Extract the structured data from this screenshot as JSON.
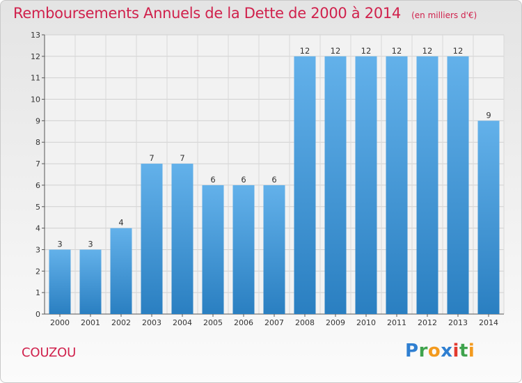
{
  "title": "Remboursements Annuels de la Dette de 2000 à 2014",
  "unit": "(en milliers d'€)",
  "commune": "COUZOU",
  "brand": {
    "text": "Proxiti",
    "letters": [
      {
        "ch": "P",
        "color": "#2f7fd1"
      },
      {
        "ch": "r",
        "color": "#3fa34d"
      },
      {
        "ch": "o",
        "color": "#f39a1e"
      },
      {
        "ch": "x",
        "color": "#2f7fd1"
      },
      {
        "ch": "i",
        "color": "#e23a2e"
      },
      {
        "ch": "t",
        "color": "#3fa34d"
      },
      {
        "ch": "i",
        "color": "#f39a1e"
      }
    ]
  },
  "colors": {
    "accent": "#d0214c",
    "bar_light": "#63b1ea",
    "bar_dark": "#2a7fc1"
  },
  "chart_data": {
    "type": "bar",
    "categories": [
      "2000",
      "2001",
      "2002",
      "2003",
      "2004",
      "2005",
      "2006",
      "2007",
      "2008",
      "2009",
      "2010",
      "2011",
      "2012",
      "2013",
      "2014"
    ],
    "values": [
      3,
      3,
      4,
      7,
      7,
      6,
      6,
      6,
      12,
      12,
      12,
      12,
      12,
      12,
      9
    ],
    "yticks": [
      0,
      1,
      2,
      3,
      4,
      5,
      6,
      7,
      8,
      9,
      10,
      11,
      12,
      13
    ],
    "ylim": [
      0,
      13
    ],
    "grid": true,
    "data_labels": true
  }
}
